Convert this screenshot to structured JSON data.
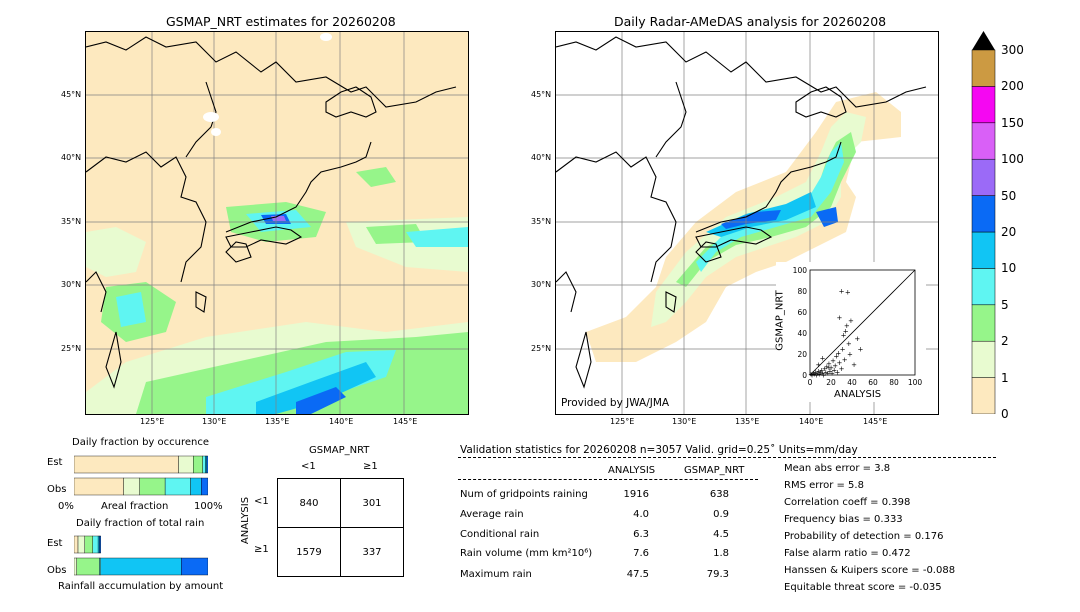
{
  "left_map": {
    "title": "GSMAP_NRT estimates for 20260208",
    "lat_labels": [
      "45°N",
      "40°N",
      "35°N",
      "30°N",
      "25°N"
    ],
    "lon_labels": [
      "125°E",
      "130°E",
      "135°E",
      "140°E",
      "145°E"
    ]
  },
  "right_map": {
    "title": "Daily Radar-AMeDAS analysis for 20260208",
    "lat_labels": [
      "45°N",
      "40°N",
      "35°N",
      "30°N",
      "25°N"
    ],
    "lon_labels": [
      "125°E",
      "130°E",
      "135°E",
      "140°E",
      "145°E"
    ],
    "credit": "Provided by JWA/JMA"
  },
  "colorbar": {
    "labels": [
      "0",
      "1",
      "2",
      "5",
      "10",
      "20",
      "50",
      "100",
      "150",
      "200",
      "300"
    ],
    "colors": [
      "#fde9bf",
      "#e8fbd0",
      "#96f58a",
      "#5ff5f2",
      "#11c5f4",
      "#0a6af5",
      "#9b6af7",
      "#d960f7",
      "#f507f2",
      "#cc9a42"
    ],
    "extend_color": "#000000"
  },
  "chart_data": [
    {
      "type": "scatter",
      "xlabel": "ANALYSIS",
      "ylabel": "GSMAP_NRT",
      "xlim": [
        0,
        100
      ],
      "ylim": [
        0,
        100
      ],
      "xticks": [
        "0",
        "20",
        "40",
        "60",
        "80",
        "100"
      ],
      "yticks": [
        "0",
        "20",
        "40",
        "60",
        "80",
        "100"
      ],
      "points": [
        [
          1,
          1
        ],
        [
          2,
          0
        ],
        [
          3,
          2
        ],
        [
          4,
          1
        ],
        [
          5,
          3
        ],
        [
          6,
          0
        ],
        [
          7,
          2
        ],
        [
          8,
          4
        ],
        [
          9,
          1
        ],
        [
          10,
          3
        ],
        [
          11,
          5
        ],
        [
          12,
          2
        ],
        [
          13,
          0
        ],
        [
          14,
          6
        ],
        [
          15,
          3
        ],
        [
          16,
          8
        ],
        [
          17,
          2
        ],
        [
          18,
          11
        ],
        [
          19,
          4
        ],
        [
          20,
          7
        ],
        [
          21,
          2
        ],
        [
          22,
          14
        ],
        [
          23,
          5
        ],
        [
          24,
          9
        ],
        [
          25,
          18
        ],
        [
          26,
          3
        ],
        [
          27,
          21
        ],
        [
          28,
          12
        ],
        [
          30,
          6
        ],
        [
          31,
          25
        ],
        [
          33,
          15
        ],
        [
          34,
          42
        ],
        [
          35,
          47
        ],
        [
          36,
          79
        ],
        [
          37,
          30
        ],
        [
          38,
          20
        ],
        [
          39,
          52
        ],
        [
          42,
          10
        ],
        [
          45,
          35
        ],
        [
          48,
          25
        ],
        [
          28,
          55
        ],
        [
          32,
          38
        ],
        [
          30,
          80
        ],
        [
          8,
          10
        ],
        [
          12,
          16
        ],
        [
          18,
          7
        ]
      ]
    },
    {
      "type": "bar",
      "title": "Daily fraction by occurence",
      "categories": [
        "Est",
        "Obs"
      ],
      "series": [
        {
          "color": "#fde9bf",
          "values": [
            0.78,
            0.37
          ]
        },
        {
          "color": "#e8fbd0",
          "values": [
            0.11,
            0.12
          ]
        },
        {
          "color": "#96f58a",
          "values": [
            0.07,
            0.19
          ]
        },
        {
          "color": "#5ff5f2",
          "values": [
            0.02,
            0.19
          ]
        },
        {
          "color": "#11c5f4",
          "values": [
            0.01,
            0.08
          ]
        },
        {
          "color": "#0a6af5",
          "values": [
            0.01,
            0.05
          ]
        }
      ],
      "xlabel": "Areal fraction",
      "xtick_left": "0%",
      "xtick_right": "100%"
    },
    {
      "type": "bar",
      "title": "Daily fraction of total rain",
      "categories": [
        "Est",
        "Obs"
      ],
      "series": [
        {
          "color": "#fde9bf",
          "values": [
            0.03,
            0.0
          ]
        },
        {
          "color": "#e8fbd0",
          "values": [
            0.05,
            0.02
          ]
        },
        {
          "color": "#96f58a",
          "values": [
            0.06,
            0.17
          ]
        },
        {
          "color": "#5ff5f2",
          "values": [
            0.04,
            0.01
          ]
        },
        {
          "color": "#11c5f4",
          "values": [
            0.01,
            0.6
          ]
        },
        {
          "color": "#0a6af5",
          "values": [
            0.01,
            0.2
          ]
        }
      ],
      "xlabel": "Rainfall accumulation by amount"
    }
  ],
  "contingency": {
    "title": "GSMAP_NRT",
    "col_labels": [
      "<1",
      "≥1"
    ],
    "row_label": "ANALYSIS",
    "row_labels": [
      "<1",
      "≥1"
    ],
    "cells": [
      [
        "840",
        "301"
      ],
      [
        "1579",
        "337"
      ]
    ]
  },
  "validation": {
    "header": "Validation statistics for 20260208  n=3057 Valid. grid=0.25˚ Units=mm/day",
    "col1": "ANALYSIS",
    "col2": "GSMAP_NRT",
    "rows": [
      {
        "label": "Num of gridpoints raining",
        "a": "1916",
        "b": "638"
      },
      {
        "label": "Average rain",
        "a": "4.0",
        "b": "0.9"
      },
      {
        "label": "Conditional rain",
        "a": "6.3",
        "b": "4.5"
      },
      {
        "label": "Rain volume (mm km²10⁶)",
        "a": "7.6",
        "b": "1.8"
      },
      {
        "label": "Maximum rain",
        "a": "47.5",
        "b": "79.3"
      }
    ],
    "scores": [
      "Mean abs error =    3.8",
      "RMS error =    5.8",
      "Correlation coeff =  0.398",
      "Frequency bias =  0.333",
      "Probability of detection =  0.176",
      "False alarm ratio =  0.472",
      "Hanssen & Kuipers score = -0.088",
      "Equitable threat score = -0.035"
    ]
  }
}
